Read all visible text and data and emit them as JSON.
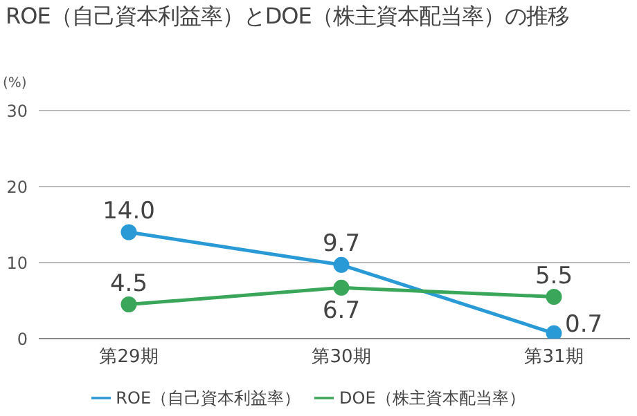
{
  "chart_data": {
    "type": "line",
    "title": "ROE（自己資本利益率）とDOE（株主資本配当率）の推移",
    "ylabel": "(%)",
    "categories": [
      "第29期",
      "第30期",
      "第31期"
    ],
    "series": [
      {
        "name": "ROE（自己資本利益率）",
        "color": "#2a9ad6",
        "values": [
          14.0,
          9.7,
          0.7
        ],
        "value_labels": [
          "14.0",
          "9.7",
          "0.7"
        ]
      },
      {
        "name": "DOE（株主資本配当率）",
        "color": "#3aa65a",
        "values": [
          4.5,
          6.7,
          5.5
        ],
        "value_labels": [
          "4.5",
          "6.7",
          "5.5"
        ]
      }
    ],
    "ylim": [
      0,
      30
    ],
    "yticks": [
      0,
      10,
      20,
      30
    ],
    "grid": "y",
    "legend": "bottom",
    "marker": "circle",
    "line_style": "solid"
  }
}
